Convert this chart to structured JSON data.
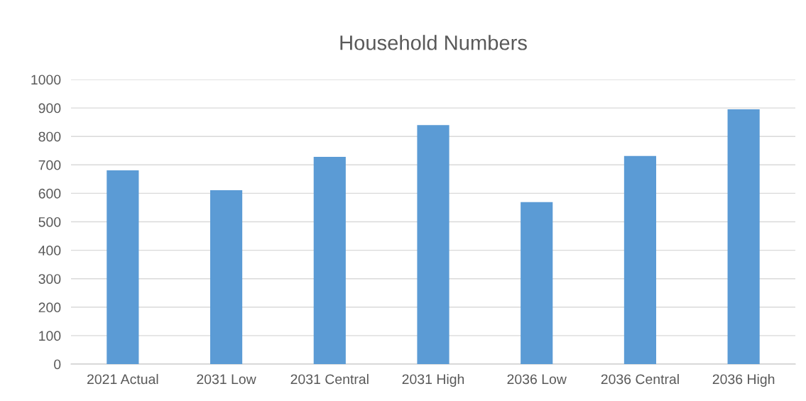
{
  "chart_data": {
    "type": "bar",
    "title": "Household Numbers",
    "categories": [
      "2021 Actual",
      "2031 Low",
      "2031 Central",
      "2031 High",
      "2036 Low",
      "2036 Central",
      "2036 High"
    ],
    "values": [
      681,
      611,
      728,
      840,
      569,
      731,
      895
    ],
    "color": "#5b9bd5",
    "ylim": [
      0,
      1000
    ],
    "yticks": [
      0,
      100,
      200,
      300,
      400,
      500,
      600,
      700,
      800,
      900,
      1000
    ],
    "grid": "y",
    "legend": false
  }
}
